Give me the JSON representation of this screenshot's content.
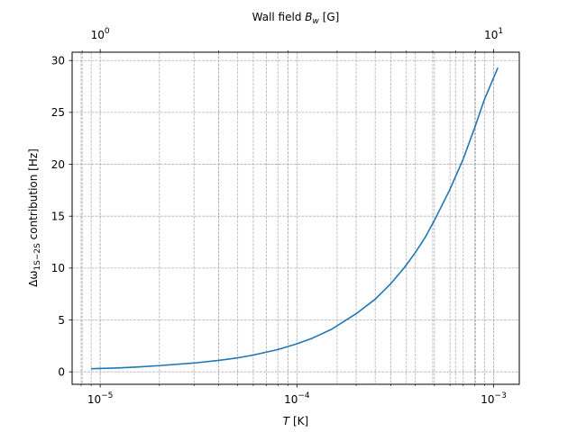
{
  "chart_data": {
    "type": "line",
    "x_scale": "log",
    "xlabel": "T [K]",
    "ylabel": "Δω_{1S−2S} contribution [Hz]",
    "top_xlabel": "Wall field B_w [G]",
    "xlim": [
      7.2e-06,
      0.00135
    ],
    "ylim": [
      -1.2,
      30.8
    ],
    "grid": true,
    "legend": false,
    "x_ticks": [
      {
        "value": 1e-05,
        "base": "10",
        "exp": "−5"
      },
      {
        "value": 0.0001,
        "base": "10",
        "exp": "−4"
      },
      {
        "value": 0.001,
        "base": "10",
        "exp": "−3"
      }
    ],
    "y_ticks": [
      {
        "value": 0,
        "label": "0"
      },
      {
        "value": 5,
        "label": "5"
      },
      {
        "value": 10,
        "label": "10"
      },
      {
        "value": 15,
        "label": "15"
      },
      {
        "value": 20,
        "label": "20"
      },
      {
        "value": 25,
        "label": "25"
      },
      {
        "value": 30,
        "label": "30"
      }
    ],
    "top_ticks": [
      {
        "value": 1,
        "base": "10",
        "exp": "0"
      },
      {
        "value": 10,
        "base": "10",
        "exp": "1"
      }
    ],
    "top_axis_minor_values": [
      0.6,
      0.7,
      0.8,
      0.9,
      2,
      3,
      4,
      5,
      6,
      7,
      8,
      9,
      20,
      30,
      40,
      50
    ],
    "top_axis_relation": "B_w_per_sqrt_T",
    "top_axis_factor": 316.2,
    "series": [
      {
        "color": "#1f77b4",
        "points": [
          [
            9e-06,
            0.3
          ],
          [
            1.2e-05,
            0.37
          ],
          [
            1.5e-05,
            0.45
          ],
          [
            2e-05,
            0.6
          ],
          [
            3e-05,
            0.85
          ],
          [
            4e-05,
            1.1
          ],
          [
            5e-05,
            1.35
          ],
          [
            6e-05,
            1.62
          ],
          [
            7e-05,
            1.9
          ],
          [
            8e-05,
            2.15
          ],
          [
            0.0001,
            2.7
          ],
          [
            0.00012,
            3.25
          ],
          [
            0.00015,
            4.1
          ],
          [
            0.0002,
            5.6
          ],
          [
            0.00025,
            7.0
          ],
          [
            0.0003,
            8.5
          ],
          [
            0.00035,
            10.0
          ],
          [
            0.0004,
            11.5
          ],
          [
            0.00045,
            13.0
          ],
          [
            0.0005,
            14.6
          ],
          [
            0.0006,
            17.6
          ],
          [
            0.0007,
            20.5
          ],
          [
            0.0008,
            23.5
          ],
          [
            0.0009,
            26.3
          ],
          [
            0.00105,
            29.3
          ]
        ]
      }
    ]
  }
}
